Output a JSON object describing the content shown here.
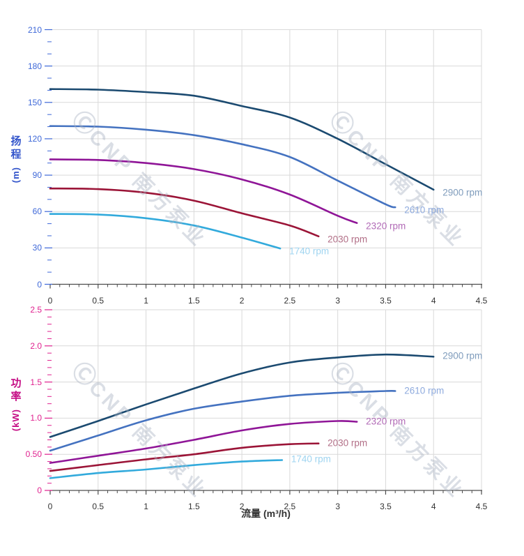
{
  "watermark": {
    "logo": "Ⓒ",
    "text": "CNP 南方泵业"
  },
  "colors": {
    "grid": "#d9d9d9",
    "axis_line": "#4d4d4d",
    "x_tick_text": "#333333",
    "x_axis_title_text": "#333333",
    "watermark": "#a9b3c2"
  },
  "chart_data": [
    {
      "type": "line",
      "title": "",
      "xlabel": "",
      "ylabel": "扬程 (m)",
      "axis_title_chars": "扬程",
      "axis_title_unit": "(m)",
      "tick_color": "#3e68d8",
      "title_color": "#3355cb",
      "x_range": [
        0,
        4.5
      ],
      "y_range": [
        0,
        210
      ],
      "x_tick_step": 0.5,
      "y_tick_step": 30,
      "x_minor_step": 0.1,
      "y_minor_step": 10,
      "grid": "on",
      "x_tick_labels": [
        "0",
        "0.5",
        "1",
        "1.5",
        "2",
        "2.5",
        "3",
        "3.5",
        "4",
        "4.5"
      ],
      "y_tick_labels": [
        "0",
        "30",
        "60",
        "90",
        "120",
        "150",
        "180",
        "210"
      ],
      "series": [
        {
          "name": "2900 rpm",
          "color": "#1b4a70",
          "label_color": "#7f9cbc",
          "points": [
            [
              0,
              161
            ],
            [
              0.5,
              160.5
            ],
            [
              1,
              158.5
            ],
            [
              1.5,
              155.5
            ],
            [
              2,
              147
            ],
            [
              2.5,
              137.5
            ],
            [
              3,
              120
            ],
            [
              3.5,
              99
            ],
            [
              4,
              78
            ]
          ]
        },
        {
          "name": "2610 rpm",
          "color": "#4472c0",
          "label_color": "#8fabde",
          "points": [
            [
              0,
              130.5
            ],
            [
              0.5,
              130
            ],
            [
              1,
              127.5
            ],
            [
              1.5,
              123
            ],
            [
              2,
              115.5
            ],
            [
              2.5,
              105
            ],
            [
              3,
              85.5
            ],
            [
              3.5,
              66
            ],
            [
              3.6,
              63.5
            ]
          ]
        },
        {
          "name": "2320 rpm",
          "color": "#8f1597",
          "label_color": "#b16ab6",
          "points": [
            [
              0,
              103
            ],
            [
              0.5,
              102.5
            ],
            [
              1,
              100
            ],
            [
              1.5,
              95
            ],
            [
              2,
              86.5
            ],
            [
              2.5,
              74
            ],
            [
              3,
              56.5
            ],
            [
              3.2,
              50.5
            ]
          ]
        },
        {
          "name": "2030 rpm",
          "color": "#9b1437",
          "label_color": "#b26f87",
          "points": [
            [
              0,
              79
            ],
            [
              0.5,
              78.5
            ],
            [
              1,
              75.5
            ],
            [
              1.5,
              69
            ],
            [
              2,
              58.5
            ],
            [
              2.5,
              48.5
            ],
            [
              2.8,
              39.5
            ]
          ]
        },
        {
          "name": "1740 rpm",
          "color": "#32aadc",
          "label_color": "#9fd4f0",
          "points": [
            [
              0,
              58
            ],
            [
              0.5,
              57.5
            ],
            [
              1,
              54.5
            ],
            [
              1.5,
              48.5
            ],
            [
              2,
              38.5
            ],
            [
              2.4,
              29.5
            ]
          ]
        }
      ]
    },
    {
      "type": "line",
      "title": "",
      "xlabel": "流量 (m³/h)",
      "ylabel": "功率 (kW)",
      "axis_title_chars": "功率",
      "axis_title_unit": "(kW)",
      "tick_color": "#e0218f",
      "title_color": "#c50d85",
      "x_range": [
        0,
        4.5
      ],
      "y_range": [
        0,
        2.5
      ],
      "x_tick_step": 0.5,
      "y_tick_step": 0.5,
      "x_minor_step": 0.1,
      "y_minor_step": 0.1,
      "grid": "on",
      "x_tick_labels": [
        "0",
        "0.5",
        "1",
        "1.5",
        "2",
        "2.5",
        "3",
        "3.5",
        "4",
        "4.5"
      ],
      "y_tick_labels": [
        "0",
        "0.50",
        "1.0",
        "1.5",
        "2.0",
        "2.5"
      ],
      "series": [
        {
          "name": "2900 rpm",
          "color": "#1b4a70",
          "label_color": "#7f9cbc",
          "points": [
            [
              0,
              0.74
            ],
            [
              0.5,
              0.96
            ],
            [
              1,
              1.19
            ],
            [
              1.5,
              1.41
            ],
            [
              2,
              1.62
            ],
            [
              2.5,
              1.77
            ],
            [
              3,
              1.84
            ],
            [
              3.5,
              1.88
            ],
            [
              4,
              1.85
            ]
          ]
        },
        {
          "name": "2610 rpm",
          "color": "#4472c0",
          "label_color": "#8fabde",
          "points": [
            [
              0,
              0.55
            ],
            [
              0.5,
              0.76
            ],
            [
              1,
              0.97
            ],
            [
              1.5,
              1.13
            ],
            [
              2,
              1.23
            ],
            [
              2.5,
              1.31
            ],
            [
              3,
              1.35
            ],
            [
              3.5,
              1.375
            ],
            [
              3.6,
              1.375
            ]
          ]
        },
        {
          "name": "2320 rpm",
          "color": "#8f1597",
          "label_color": "#b16ab6",
          "points": [
            [
              0,
              0.38
            ],
            [
              0.5,
              0.48
            ],
            [
              1,
              0.58
            ],
            [
              1.5,
              0.7
            ],
            [
              2,
              0.83
            ],
            [
              2.5,
              0.92
            ],
            [
              3,
              0.96
            ],
            [
              3.2,
              0.95
            ]
          ]
        },
        {
          "name": "2030 rpm",
          "color": "#9b1437",
          "label_color": "#b26f87",
          "points": [
            [
              0,
              0.27
            ],
            [
              0.5,
              0.35
            ],
            [
              1,
              0.43
            ],
            [
              1.5,
              0.5
            ],
            [
              2,
              0.59
            ],
            [
              2.5,
              0.64
            ],
            [
              2.8,
              0.65
            ]
          ]
        },
        {
          "name": "1740 rpm",
          "color": "#32aadc",
          "label_color": "#9fd4f0",
          "points": [
            [
              0,
              0.17
            ],
            [
              0.5,
              0.24
            ],
            [
              1,
              0.29
            ],
            [
              1.5,
              0.35
            ],
            [
              2,
              0.4
            ],
            [
              2.42,
              0.42
            ]
          ]
        }
      ]
    }
  ]
}
